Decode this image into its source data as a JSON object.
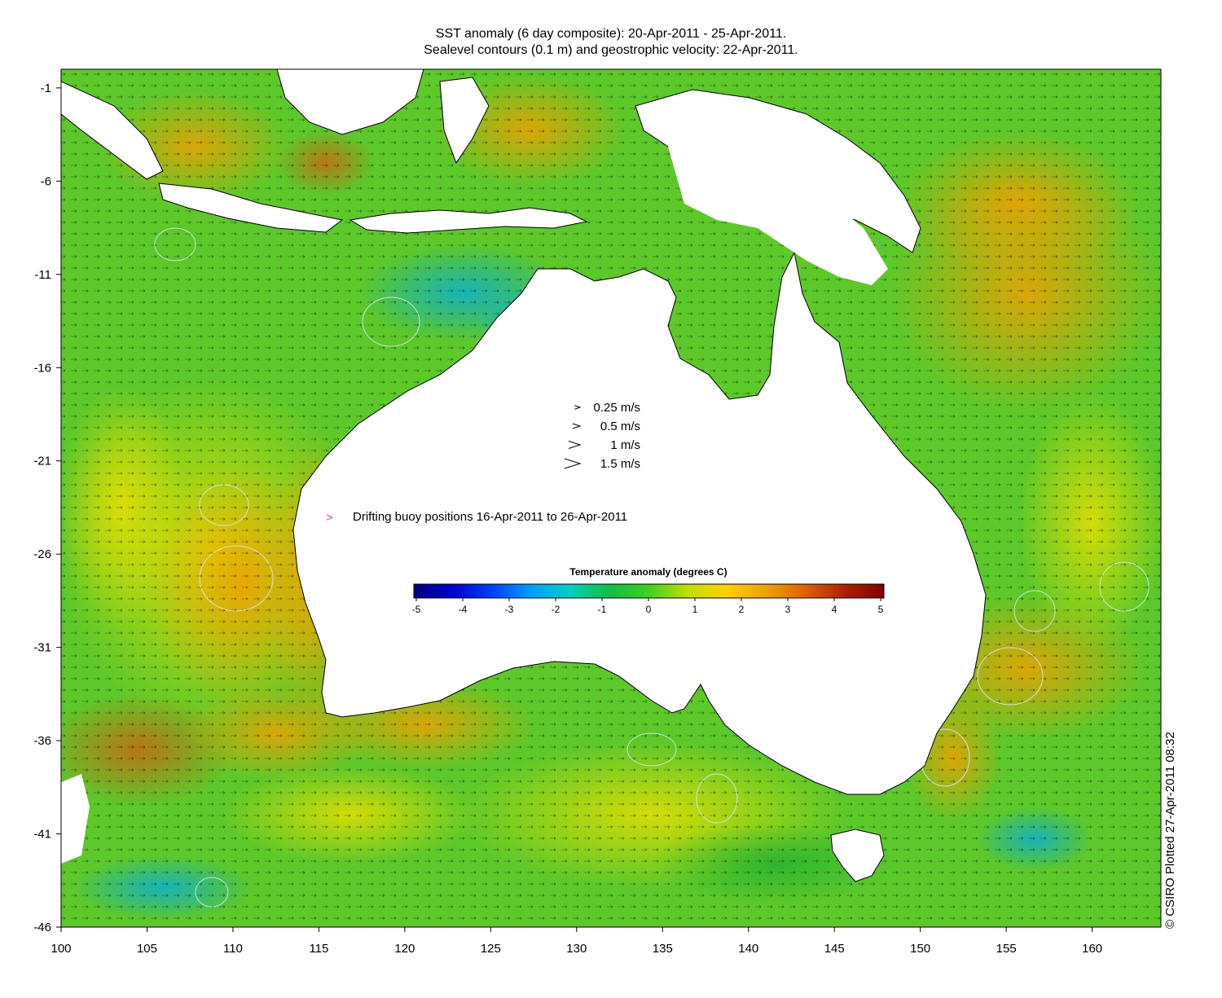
{
  "header": {
    "title_line1": "SST anomaly (6 day composite): 20-Apr-2011 - 25-Apr-2011.",
    "title_line2": "Sealevel contours (0.1 m) and geostrophic velocity: 22-Apr-2011."
  },
  "map": {
    "lon_range": [
      100,
      164
    ],
    "lat_range": [
      -46,
      0
    ],
    "x_ticks": [
      "100",
      "105",
      "110",
      "115",
      "120",
      "125",
      "130",
      "135",
      "140",
      "145",
      "150",
      "155",
      "160"
    ],
    "y_ticks": [
      "-1",
      "-6",
      "-11",
      "-16",
      "-21",
      "-26",
      "-31",
      "-36",
      "-41",
      "-46"
    ],
    "x_tick_values": [
      100,
      105,
      110,
      115,
      120,
      125,
      130,
      135,
      140,
      145,
      150,
      155,
      160
    ],
    "y_tick_values": [
      -1,
      -6,
      -11,
      -16,
      -21,
      -26,
      -31,
      -36,
      -41,
      -46
    ],
    "land_color": "#ffffff",
    "coast_color": "#000000",
    "contour_color": "#d8e8ff"
  },
  "velocity_legend": {
    "items": [
      "0.25 m/s",
      "0.5 m/s",
      "1 m/s",
      "1.5 m/s"
    ],
    "speeds": [
      0.25,
      0.5,
      1,
      1.5
    ]
  },
  "buoy_legend": {
    "label": "Drifting buoy positions 16-Apr-2011 to 26-Apr-2011",
    "color": "#e040e0"
  },
  "colorbar": {
    "title": "Temperature anomaly (degrees C)",
    "ticks": [
      "-5",
      "-4",
      "-3",
      "-2",
      "-1",
      "0",
      "1",
      "2",
      "3",
      "4",
      "5"
    ],
    "range": [
      -5,
      5
    ],
    "colors": [
      "#00007f",
      "#0000d0",
      "#0040ff",
      "#00a0ff",
      "#00d0c0",
      "#10c040",
      "#40d020",
      "#c0e000",
      "#ffd000",
      "#f0a000",
      "#e06000",
      "#b02000",
      "#800000"
    ]
  },
  "credit": "© CSIRO Plotted 27-Apr-2011 08:32"
}
